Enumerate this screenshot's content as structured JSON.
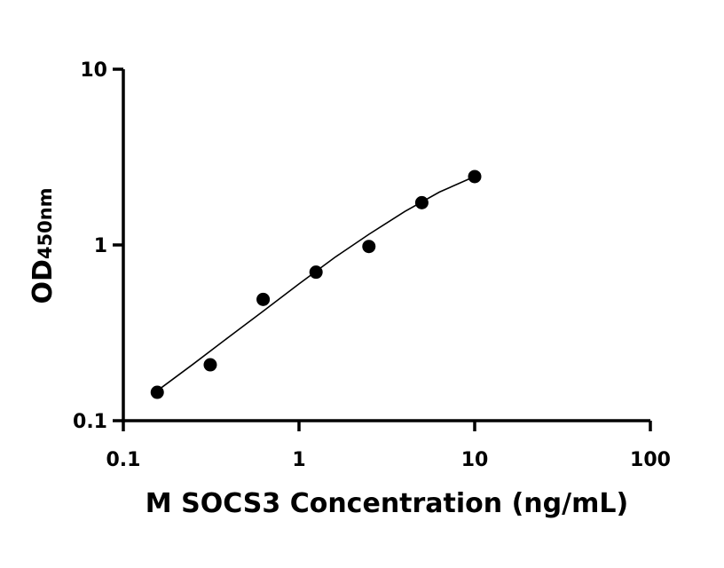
{
  "chart_data": {
    "type": "scatter",
    "title": "",
    "xlabel": "M SOCS3 Concentration (ng/mL)",
    "ylabel": {
      "main": "OD",
      "subscript": "450nm"
    },
    "x_scale": "log",
    "y_scale": "log",
    "xlim": [
      0.1,
      100
    ],
    "ylim": [
      0.1,
      10
    ],
    "x_ticks": [
      0.1,
      1,
      10,
      100
    ],
    "x_tick_labels": [
      "0.1",
      "1",
      "10",
      "100"
    ],
    "y_ticks": [
      0.1,
      1,
      10
    ],
    "y_tick_labels": [
      "0.1",
      "1",
      "10"
    ],
    "grid": false,
    "legend": false,
    "series": [
      {
        "x": [
          0.156,
          0.3125,
          0.625,
          1.25,
          2.5,
          5,
          10
        ],
        "y": [
          0.145,
          0.208,
          0.49,
          0.7,
          0.98,
          1.74,
          2.45
        ]
      }
    ],
    "fit_curve": {
      "x": [
        0.156,
        0.25,
        0.4,
        0.625,
        1.0,
        1.6,
        2.5,
        4.0,
        6.3,
        10
      ],
      "y": [
        0.148,
        0.21,
        0.3,
        0.42,
        0.6,
        0.85,
        1.15,
        1.55,
        2.0,
        2.45
      ]
    },
    "colors": {
      "marker": "#000000",
      "line": "#000000",
      "axis": "#000000"
    }
  }
}
